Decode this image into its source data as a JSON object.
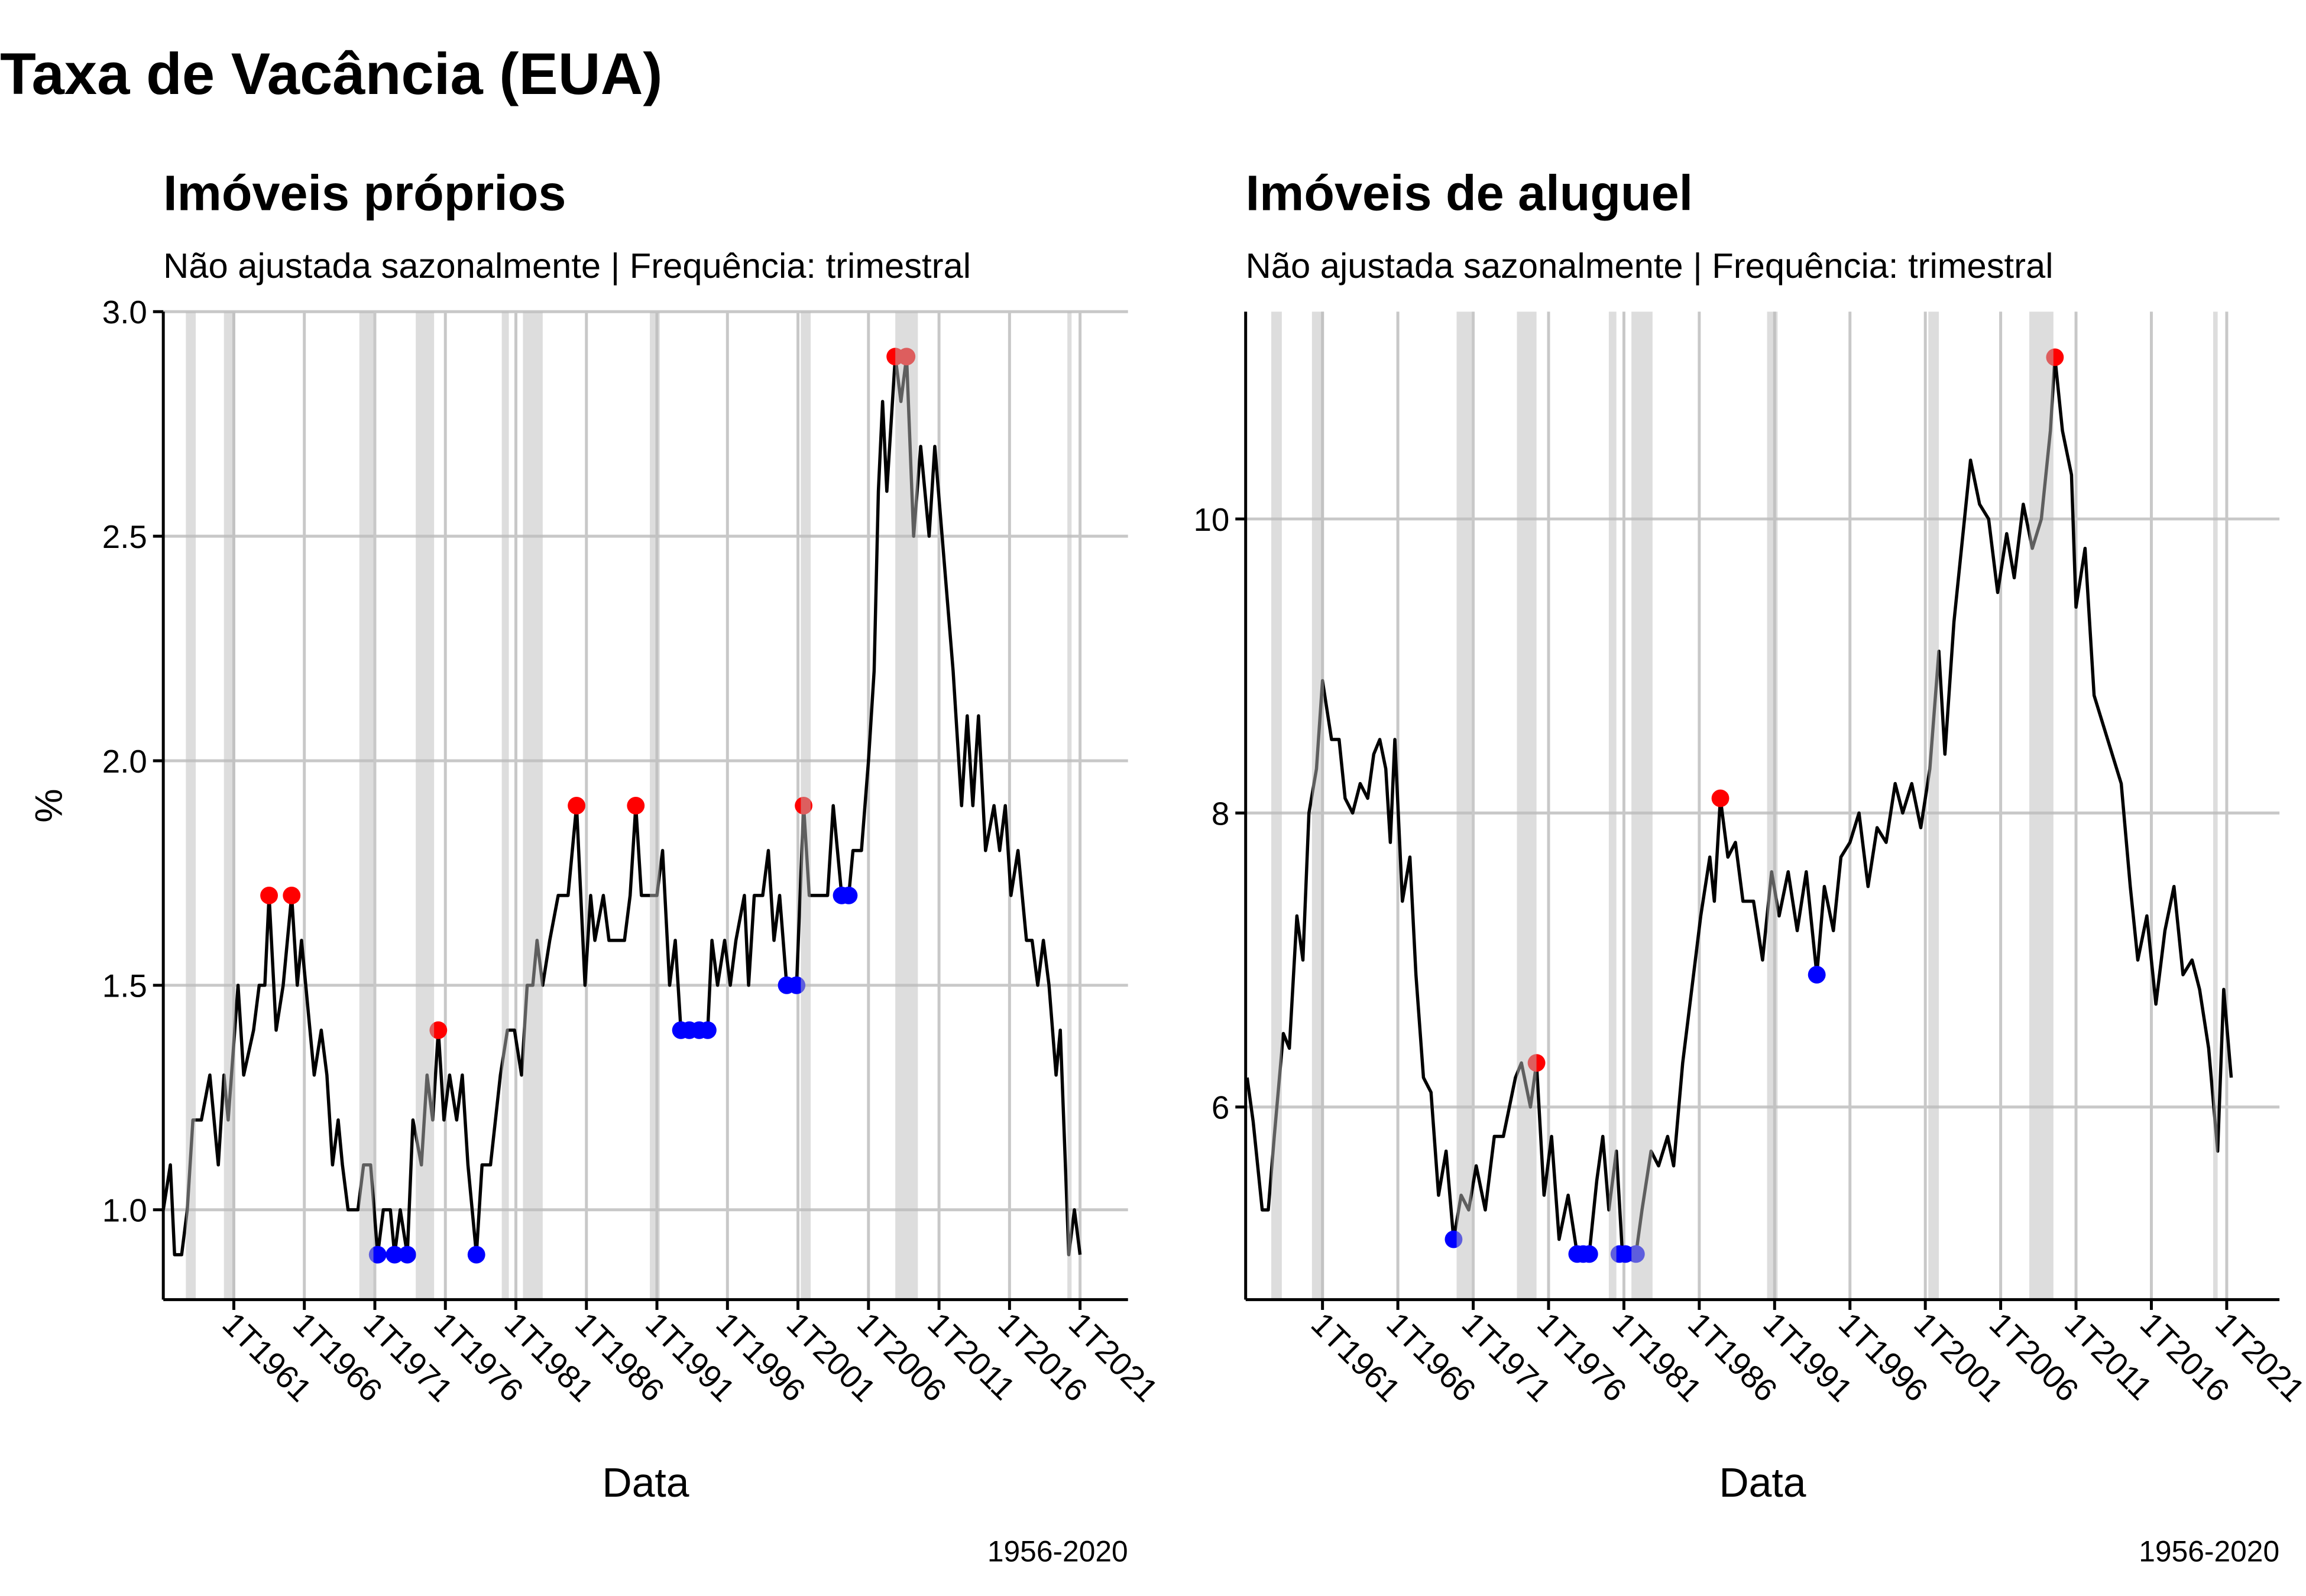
{
  "title": "Taxa de Vacância (EUA)",
  "chart_data": [
    {
      "type": "line",
      "title": "Imóveis próprios",
      "subtitle": "Não ajustada sazonalmente | Frequência: trimestral",
      "xlabel": "Data",
      "ylabel": "%",
      "caption": "1956-2020",
      "xlim": [
        1956,
        2024.4
      ],
      "ylim": [
        0.8,
        3.0
      ],
      "xticks": [
        {
          "value": 1961,
          "label": "1T1961"
        },
        {
          "value": 1966,
          "label": "1T1966"
        },
        {
          "value": 1971,
          "label": "1T1971"
        },
        {
          "value": 1976,
          "label": "1T1976"
        },
        {
          "value": 1981,
          "label": "1T1981"
        },
        {
          "value": 1986,
          "label": "1T1986"
        },
        {
          "value": 1991,
          "label": "1T1991"
        },
        {
          "value": 1996,
          "label": "1T1996"
        },
        {
          "value": 2001,
          "label": "1T2001"
        },
        {
          "value": 2006,
          "label": "1T2006"
        },
        {
          "value": 2011,
          "label": "1T2011"
        },
        {
          "value": 2016,
          "label": "1T2016"
        },
        {
          "value": 2021,
          "label": "1T2021"
        }
      ],
      "yticks": [
        {
          "value": 1,
          "label": "1.0"
        },
        1.5,
        {
          "value": 2,
          "label": "2.0"
        },
        2.5,
        {
          "value": 3,
          "label": "3.0"
        }
      ],
      "grid": true,
      "recession_color": "#bbbbbb",
      "recessions": [
        [
          1957.6,
          1958.3
        ],
        [
          1960.3,
          1961.1
        ],
        [
          1969.9,
          1970.9
        ],
        [
          1973.9,
          1975.2
        ],
        [
          1980.0,
          1980.5
        ],
        [
          1981.5,
          1982.9
        ],
        [
          1990.5,
          1991.2
        ],
        [
          2001.2,
          2001.9
        ],
        [
          2007.9,
          2009.5
        ],
        [
          2020.1,
          2020.4
        ]
      ],
      "x": [
        1956.0,
        1956.5,
        1956.8,
        1957.3,
        1957.7,
        1958.1,
        1958.7,
        1959.3,
        1959.9,
        1960.3,
        1960.6,
        1961.3,
        1961.7,
        1962.4,
        1962.8,
        1963.2,
        1963.5,
        1964.0,
        1964.5,
        1965.1,
        1965.5,
        1965.8,
        1966.1,
        1966.7,
        1967.2,
        1967.6,
        1968.0,
        1968.4,
        1968.7,
        1969.1,
        1969.8,
        1970.2,
        1970.7,
        1971.2,
        1971.6,
        1972.1,
        1972.4,
        1972.8,
        1973.3,
        1973.7,
        1974.3,
        1974.7,
        1975.1,
        1975.5,
        1975.9,
        1976.3,
        1976.8,
        1977.2,
        1977.6,
        1978.2,
        1978.6,
        1979.2,
        1979.9,
        1980.4,
        1980.9,
        1981.4,
        1981.8,
        1982.2,
        1982.5,
        1982.9,
        1983.4,
        1984.0,
        1984.7,
        1985.3,
        1985.9,
        1986.3,
        1986.6,
        1987.2,
        1987.6,
        1988.7,
        1989.1,
        1989.5,
        1989.9,
        1991.0,
        1991.4,
        1991.9,
        1992.3,
        1992.7,
        1994.6,
        1994.9,
        1995.3,
        1995.8,
        1996.2,
        1996.6,
        1997.2,
        1997.5,
        1997.9,
        1998.5,
        1998.9,
        1999.3,
        1999.7,
        2000.2,
        2000.9,
        2001.4,
        2001.8,
        2003.1,
        2003.5,
        2004.1,
        2004.6,
        2004.9,
        2005.5,
        2006.0,
        2006.4,
        2006.7,
        2007.0,
        2007.3,
        2007.9,
        2008.3,
        2008.7,
        2009.2,
        2009.7,
        2010.3,
        2010.7,
        2012.0,
        2012.6,
        2013.0,
        2013.4,
        2013.8,
        2014.3,
        2014.9,
        2015.3,
        2015.7,
        2016.1,
        2016.6,
        2017.2,
        2017.6,
        2018.0,
        2018.4,
        2018.8,
        2019.3,
        2019.6,
        2020.2,
        2020.6,
        2021.0
      ],
      "series": [
        {
          "color": "#000000",
          "values": [
            1.0,
            1.1,
            0.9,
            0.9,
            1.0,
            1.2,
            1.2,
            1.3,
            1.1,
            1.3,
            1.2,
            1.5,
            1.3,
            1.4,
            1.5,
            1.5,
            1.7,
            1.4,
            1.5,
            1.7,
            1.5,
            1.6,
            1.5,
            1.3,
            1.4,
            1.3,
            1.1,
            1.2,
            1.1,
            1.0,
            1.0,
            1.1,
            1.1,
            0.9,
            1.0,
            1.0,
            0.9,
            1.0,
            0.9,
            1.2,
            1.1,
            1.3,
            1.2,
            1.4,
            1.2,
            1.3,
            1.2,
            1.3,
            1.1,
            0.9,
            1.1,
            1.1,
            1.3,
            1.4,
            1.4,
            1.3,
            1.5,
            1.5,
            1.6,
            1.5,
            1.6,
            1.7,
            1.7,
            1.9,
            1.5,
            1.7,
            1.6,
            1.7,
            1.6,
            1.6,
            1.7,
            1.9,
            1.7,
            1.7,
            1.8,
            1.5,
            1.6,
            1.4,
            1.4,
            1.6,
            1.5,
            1.6,
            1.5,
            1.6,
            1.7,
            1.5,
            1.7,
            1.7,
            1.8,
            1.6,
            1.7,
            1.5,
            1.5,
            1.9,
            1.7,
            1.7,
            1.9,
            1.7,
            1.7,
            1.8,
            1.8,
            2.0,
            2.2,
            2.6,
            2.8,
            2.6,
            2.9,
            2.8,
            2.9,
            2.5,
            2.7,
            2.5,
            2.7,
            2.2,
            1.9,
            2.1,
            1.9,
            2.1,
            1.8,
            1.9,
            1.8,
            1.9,
            1.7,
            1.8,
            1.6,
            1.6,
            1.5,
            1.6,
            1.5,
            1.3,
            1.4,
            0.9,
            1.0,
            0.9
          ]
        }
      ],
      "peaks": {
        "color": "#ff0000",
        "x": [
          1963.5,
          1965.1,
          1975.5,
          1985.3,
          1989.5,
          2001.4,
          2007.9,
          2008.7
        ],
        "values": [
          1.7,
          1.7,
          1.4,
          1.9,
          1.9,
          1.9,
          2.9,
          2.9
        ]
      },
      "troughs": {
        "color": "#0000ff",
        "x": [
          1971.2,
          1972.4,
          1973.3,
          1978.2,
          1992.7,
          1993.3,
          1994.0,
          1994.6,
          2000.2,
          2000.9,
          2004.1,
          2004.6
        ],
        "values": [
          0.9,
          0.9,
          0.9,
          0.9,
          1.4,
          1.4,
          1.4,
          1.4,
          1.5,
          1.5,
          1.7,
          1.7
        ]
      }
    },
    {
      "type": "line",
      "title": "Imóveis de aluguel",
      "subtitle": "Não ajustada sazonalmente | Frequência: trimestral",
      "xlabel": "Data",
      "caption": "1956-2020",
      "xlim": [
        1955.9,
        2024.5
      ],
      "ylim": [
        4.69,
        11.41
      ],
      "xticks": [
        {
          "value": 1961,
          "label": "1T1961"
        },
        {
          "value": 1966,
          "label": "1T1966"
        },
        {
          "value": 1971,
          "label": "1T1971"
        },
        {
          "value": 1976,
          "label": "1T1976"
        },
        {
          "value": 1981,
          "label": "1T1981"
        },
        {
          "value": 1986,
          "label": "1T1986"
        },
        {
          "value": 1991,
          "label": "1T1991"
        },
        {
          "value": 1996,
          "label": "1T1996"
        },
        {
          "value": 2001,
          "label": "1T2001"
        },
        {
          "value": 2006,
          "label": "1T2006"
        },
        {
          "value": 2011,
          "label": "1T2011"
        },
        {
          "value": 2016,
          "label": "1T2016"
        },
        {
          "value": 2021,
          "label": "1T2021"
        }
      ],
      "yticks": [
        6,
        8,
        10
      ],
      "grid": true,
      "recession_color": "#bbbbbb",
      "recessions": [
        [
          1957.6,
          1958.3
        ],
        [
          1960.3,
          1961.1
        ],
        [
          1969.9,
          1970.9
        ],
        [
          1973.9,
          1975.2
        ],
        [
          1980.0,
          1980.5
        ],
        [
          1981.5,
          1982.9
        ],
        [
          1990.5,
          1991.2
        ],
        [
          2001.2,
          2001.9
        ],
        [
          2007.9,
          2009.5
        ],
        [
          2020.1,
          2020.4
        ]
      ],
      "x": [
        1956.0,
        1956.4,
        1957.0,
        1957.4,
        1957.8,
        1958.4,
        1958.8,
        1959.3,
        1959.7,
        1960.1,
        1960.6,
        1961.0,
        1961.6,
        1962.1,
        1962.5,
        1963.0,
        1963.5,
        1964.0,
        1964.4,
        1964.8,
        1965.2,
        1965.5,
        1965.8,
        1966.3,
        1966.8,
        1967.2,
        1967.7,
        1968.2,
        1968.7,
        1969.2,
        1969.7,
        1970.2,
        1970.7,
        1971.2,
        1971.8,
        1972.4,
        1973.0,
        1973.8,
        1974.2,
        1974.8,
        1975.2,
        1975.7,
        1976.2,
        1976.7,
        1977.3,
        1977.9,
        1978.7,
        1979.2,
        1979.6,
        1980.0,
        1980.5,
        1980.9,
        1981.8,
        1982.2,
        1982.8,
        1983.3,
        1983.9,
        1984.3,
        1984.9,
        1985.5,
        1986.1,
        1986.7,
        1987.0,
        1987.4,
        1987.9,
        1988.4,
        1988.9,
        1989.6,
        1990.2,
        1990.8,
        1991.3,
        1991.9,
        1992.5,
        1993.1,
        1993.8,
        1994.3,
        1994.9,
        1995.4,
        1996.0,
        1996.6,
        1997.2,
        1997.8,
        1998.4,
        1999.0,
        1999.5,
        2000.1,
        2000.7,
        2001.3,
        2001.9,
        2002.3,
        2002.9,
        2003.4,
        2004.0,
        2004.6,
        2005.2,
        2005.8,
        2006.4,
        2006.9,
        2007.5,
        2008.1,
        2008.7,
        2009.3,
        2009.6,
        2010.1,
        2010.7,
        2011.0,
        2011.6,
        2012.2,
        2012.8,
        2013.4,
        2014.0,
        2014.6,
        2015.1,
        2015.7,
        2016.3,
        2016.9,
        2017.5,
        2018.1,
        2018.7,
        2019.2,
        2019.8,
        2020.4,
        2020.8,
        2021.3
      ],
      "series": [
        {
          "color": "#000000",
          "values": [
            6.2,
            5.9,
            5.3,
            5.3,
            5.8,
            6.5,
            6.4,
            7.3,
            7.0,
            8.0,
            8.3,
            8.9,
            8.5,
            8.5,
            8.1,
            8.0,
            8.2,
            8.1,
            8.4,
            8.5,
            8.3,
            7.8,
            8.5,
            7.4,
            7.7,
            6.9,
            6.2,
            6.1,
            5.4,
            5.7,
            5.1,
            5.4,
            5.3,
            5.6,
            5.3,
            5.8,
            5.8,
            6.2,
            6.3,
            6.0,
            6.3,
            5.4,
            5.8,
            5.1,
            5.4,
            5.0,
            5.0,
            5.5,
            5.8,
            5.3,
            5.7,
            5.0,
            5.0,
            5.3,
            5.7,
            5.6,
            5.8,
            5.6,
            6.3,
            6.8,
            7.3,
            7.7,
            7.4,
            8.1,
            7.7,
            7.8,
            7.4,
            7.4,
            7.0,
            7.6,
            7.3,
            7.6,
            7.2,
            7.6,
            6.9,
            7.5,
            7.2,
            7.7,
            7.8,
            8.0,
            7.5,
            7.9,
            7.8,
            8.2,
            8.0,
            8.2,
            7.9,
            8.3,
            9.1,
            8.4,
            9.3,
            9.8,
            10.4,
            10.1,
            10.0,
            9.5,
            9.9,
            9.6,
            10.1,
            9.8,
            10.0,
            10.6,
            11.1,
            10.6,
            10.3,
            9.4,
            9.8,
            8.8,
            8.6,
            8.4,
            8.2,
            7.5,
            7.0,
            7.3,
            6.7,
            7.2,
            7.5,
            6.9,
            7.0,
            6.8,
            6.4,
            5.7,
            6.8,
            6.2
          ]
        }
      ],
      "peaks": {
        "color": "#ff0000",
        "x": [
          1975.2,
          1987.4,
          2009.6
        ],
        "values": [
          6.3,
          8.1,
          11.1
        ]
      },
      "troughs": {
        "color": "#0000ff",
        "x": [
          1969.7,
          1977.9,
          1978.3,
          1978.7,
          1980.7,
          1981.1,
          1981.8,
          1993.8
        ],
        "values": [
          5.1,
          5.0,
          5.0,
          5.0,
          5.0,
          5.0,
          5.0,
          6.9
        ]
      }
    }
  ]
}
